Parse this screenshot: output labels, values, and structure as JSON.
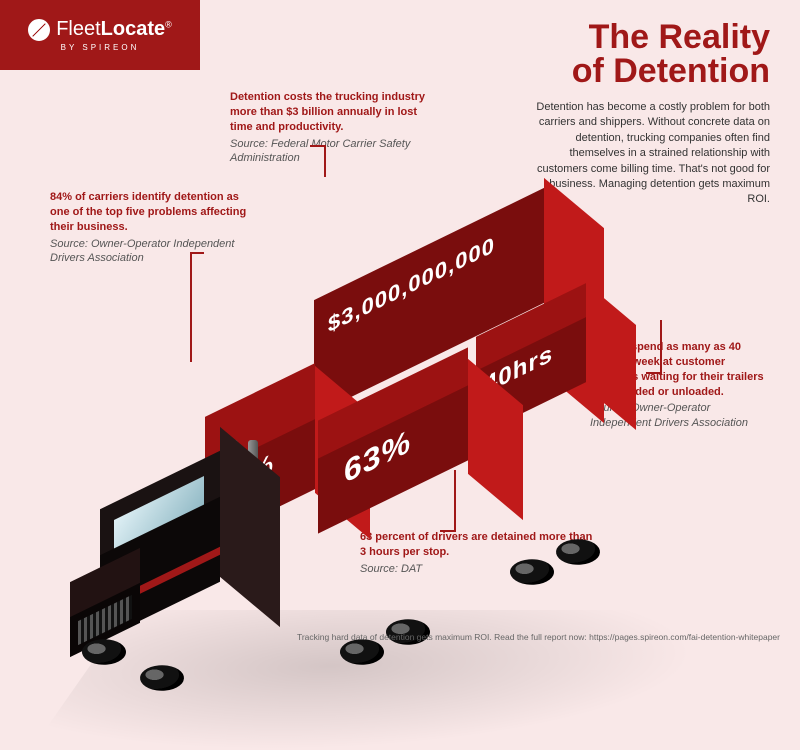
{
  "brand": {
    "name_a": "Fleet",
    "name_b": "Locate",
    "sub": "BY SPIREON"
  },
  "title_l1": "The Reality",
  "title_l2": "of Detention",
  "intro": "Detention has become a costly problem for both carriers and shippers. Without concrete data on detention, trucking companies often find themselves in a strained relationship with customers come billing time. That's not good for business. Managing detention gets maximum ROI.",
  "callouts": {
    "cost": {
      "head": "Detention costs the trucking industry more than $3 billion annually in lost time and productivity.",
      "src": "Source: Federal Motor Carrier Safety Administration"
    },
    "carriers": {
      "head": "84% of carriers identify detention as one of the top five problems affecting their business.",
      "src": "Source: Owner-Operator Independent Drivers Association"
    },
    "hours": {
      "head": "Drivers spend as many as 40 hours a week at customer locations waiting for their trailers to be loaded or unloaded.",
      "src": "Source: Owner-Operator Independent Drivers Association"
    },
    "detained": {
      "head": "63 percent of drivers are detained more than 3 hours per stop.",
      "src": "Source: DAT"
    }
  },
  "cargo": {
    "pct84": "84%",
    "dollars": "$3,000,000,000",
    "pct63": "63%",
    "hrs": "40hrs"
  },
  "footer": "Tracking hard data of detention gets maximum ROI. Read the full report now: https://pages.spireon.com/fai-detention-whitepaper",
  "colors": {
    "brand": "#a01818",
    "bg": "#f9e8e8",
    "box_top": "#9c1212",
    "box_front": "#7a0d0d",
    "box_side": "#c11a1a",
    "cab": "#1a1212"
  }
}
